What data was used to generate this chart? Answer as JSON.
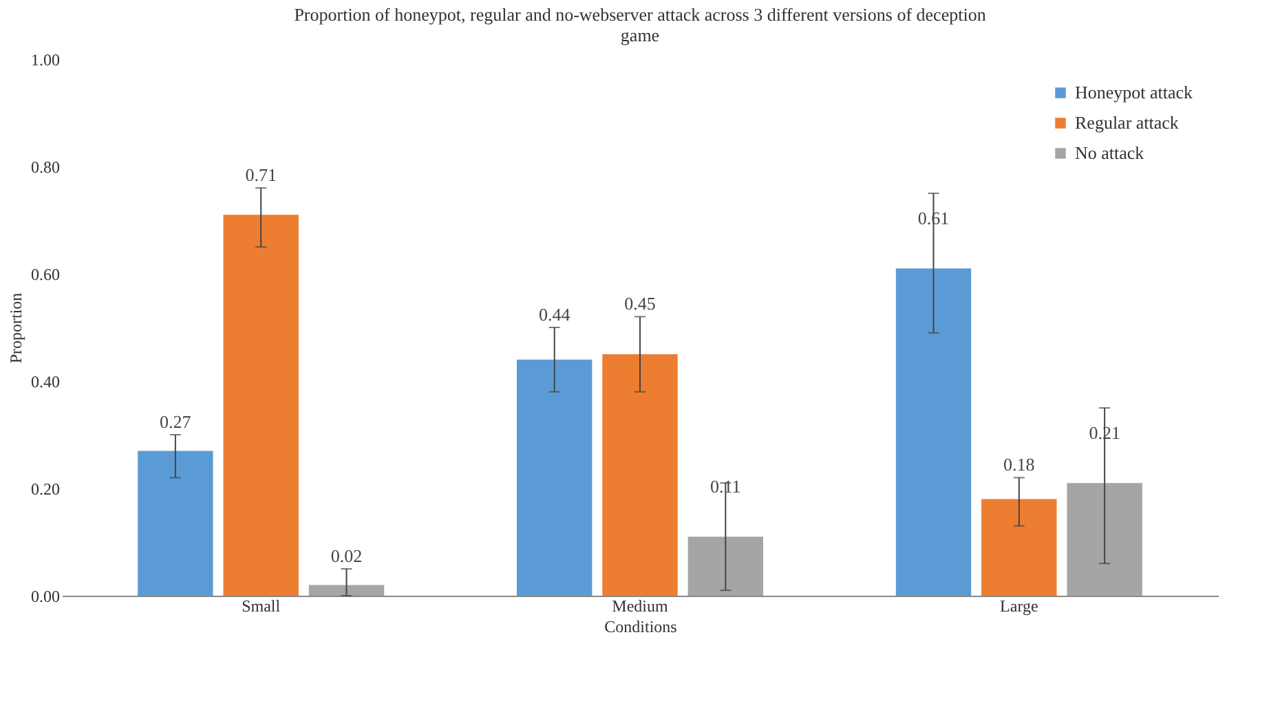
{
  "chart_data": {
    "type": "bar",
    "title": "Proportion of honeypot, regular and no-webserver attack across 3 different versions of deception game",
    "xlabel": "Conditions",
    "ylabel": "Proportion",
    "categories": [
      "Small",
      "Medium",
      "Large"
    ],
    "series": [
      {
        "name": "Honeypot attack",
        "color": "#5b9bd5",
        "values": [
          0.27,
          0.44,
          0.61
        ],
        "errors": [
          [
            0.22,
            0.3
          ],
          [
            0.38,
            0.5
          ],
          [
            0.49,
            0.75
          ]
        ]
      },
      {
        "name": "Regular attack",
        "color": "#ed7d31",
        "values": [
          0.71,
          0.45,
          0.18
        ],
        "errors": [
          [
            0.65,
            0.76
          ],
          [
            0.38,
            0.52
          ],
          [
            0.13,
            0.22
          ]
        ]
      },
      {
        "name": "No attack",
        "color": "#a5a5a5",
        "values": [
          0.02,
          0.11,
          0.21
        ],
        "errors": [
          [
            0.0,
            0.05
          ],
          [
            0.01,
            0.21
          ],
          [
            0.06,
            0.35
          ]
        ]
      }
    ],
    "ylim": [
      0,
      1
    ],
    "yticks": [
      {
        "value": 0,
        "label": "0.00"
      },
      {
        "value": 0.2,
        "label": "0.20"
      },
      {
        "value": 0.4,
        "label": "0.40"
      },
      {
        "value": 0.6,
        "label": "0.60"
      },
      {
        "value": 0.8,
        "label": "0.80"
      },
      {
        "value": 1,
        "label": "1.00"
      }
    ],
    "data_labels": true,
    "grid": false,
    "legend": "top right"
  }
}
